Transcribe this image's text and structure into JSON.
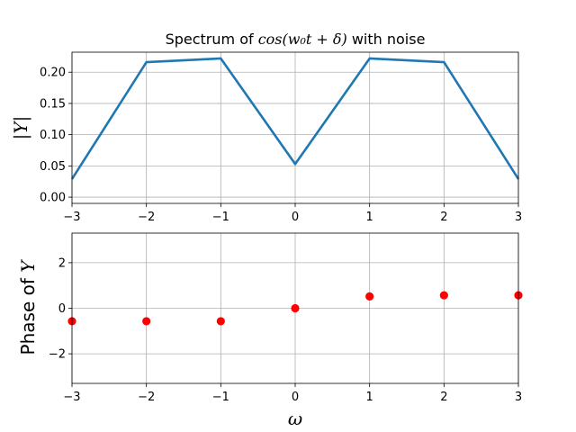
{
  "chart_data": [
    {
      "type": "line",
      "title": {
        "prefix": "Spectrum of ",
        "math": "cos(w₀t + δ)",
        "suffix": " with noise"
      },
      "ylabel": "|Y|",
      "xlabel": "",
      "x": [
        -3,
        -2,
        -1,
        0,
        1,
        2,
        3
      ],
      "series": [
        {
          "color": "#1f77b4",
          "values": [
            0.029,
            0.216,
            0.222,
            0.053,
            0.222,
            0.216,
            0.029
          ]
        }
      ],
      "xlim": [
        -3,
        3
      ],
      "ylim": [
        -0.01,
        0.232
      ],
      "xticks": [
        -3,
        -2,
        -1,
        0,
        1,
        2,
        3
      ],
      "xtick_labels": [
        "−3",
        "−2",
        "−1",
        "0",
        "1",
        "2",
        "3"
      ],
      "yticks": [
        0.0,
        0.05,
        0.1,
        0.15,
        0.2
      ],
      "ytick_labels": [
        "0.00",
        "0.05",
        "0.10",
        "0.15",
        "0.20"
      ],
      "grid": true
    },
    {
      "type": "scatter",
      "title": "",
      "ylabel": {
        "prefix": "Phase of ",
        "math": "Y"
      },
      "xlabel": "ω",
      "x": [
        -3,
        -2,
        -1,
        0,
        1,
        2,
        3
      ],
      "series": [
        {
          "color": "#ff0000",
          "values": [
            -0.57,
            -0.57,
            -0.57,
            0.0,
            0.52,
            0.57,
            0.57
          ]
        }
      ],
      "xlim": [
        -3,
        3
      ],
      "ylim": [
        -3.3,
        3.3
      ],
      "xticks": [
        -3,
        -2,
        -1,
        0,
        1,
        2,
        3
      ],
      "xtick_labels": [
        "−3",
        "−2",
        "−1",
        "0",
        "1",
        "2",
        "3"
      ],
      "yticks": [
        -2,
        0,
        2
      ],
      "ytick_labels": [
        "−2",
        "0",
        "2"
      ],
      "grid": true
    }
  ]
}
